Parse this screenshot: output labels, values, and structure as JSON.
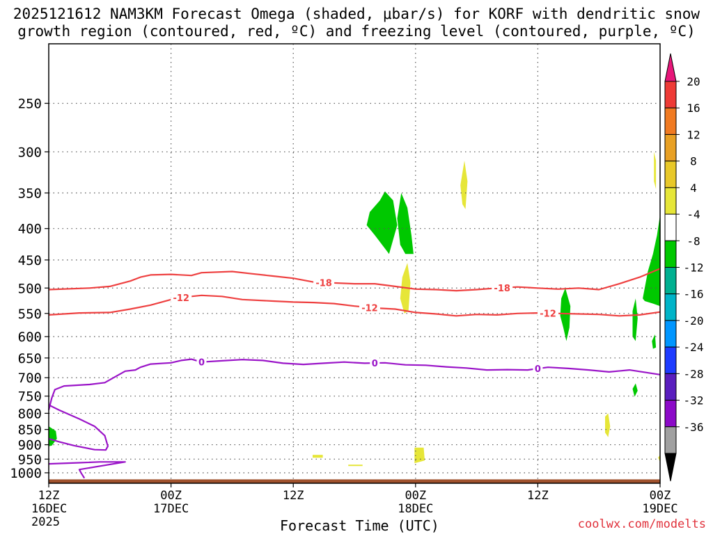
{
  "title_line1": "2025121612 NAM3KM Forecast Omega (shaded, μbar/s) for KORF with dendritic snow",
  "title_line2": "growth region (contoured, red, ºC) and freezing level (contoured, purple, ºC)",
  "credit": "coolwx.com/modelts",
  "chart_data": {
    "type": "time-height",
    "xlabel": "Forecast Time (UTC)",
    "x_range_hours": [
      0,
      60
    ],
    "x_ticks": [
      {
        "hour": 0,
        "lines": [
          "12Z",
          "16DEC",
          "2025"
        ]
      },
      {
        "hour": 12,
        "lines": [
          "00Z",
          "17DEC"
        ]
      },
      {
        "hour": 24,
        "lines": [
          "12Z"
        ]
      },
      {
        "hour": 36,
        "lines": [
          "00Z",
          "18DEC"
        ]
      },
      {
        "hour": 48,
        "lines": [
          "12Z"
        ]
      },
      {
        "hour": 60,
        "lines": [
          "00Z",
          "19DEC"
        ]
      }
    ],
    "y_axis": {
      "scale": "log-pressure",
      "range_hPa": [
        1040,
        200
      ],
      "inverted": true
    },
    "y_ticks": [
      250,
      300,
      350,
      400,
      450,
      500,
      550,
      600,
      650,
      700,
      750,
      800,
      850,
      900,
      950,
      1000
    ],
    "grid": "dotted",
    "colorbar": {
      "labels": [
        "20",
        "16",
        "12",
        "8",
        "4",
        "-4",
        "-8",
        "-12",
        "-16",
        "-20",
        "-24",
        "-28",
        "-32",
        "-36"
      ],
      "bins": [
        {
          "color": "#e8167a",
          "shape": "triangle-top"
        },
        {
          "color": "#ee3b36"
        },
        {
          "color": "#f07a22"
        },
        {
          "color": "#e8a024"
        },
        {
          "color": "#e8c829"
        },
        {
          "color": "#e6e638"
        },
        {
          "color": "#ffffff"
        },
        {
          "color": "#00c800"
        },
        {
          "color": "#00b090"
        },
        {
          "color": "#00b4c8"
        },
        {
          "color": "#0096ff"
        },
        {
          "color": "#1e3cff"
        },
        {
          "color": "#5a1ebe"
        },
        {
          "color": "#8c0ac8"
        },
        {
          "color": "#a0a0a0"
        },
        {
          "color": "#000000",
          "shape": "triangle-bottom"
        }
      ]
    },
    "contours": [
      {
        "label": "-18",
        "color": "#ee4040",
        "label_positions_hours": [
          27,
          44.5
        ],
        "points": [
          [
            0,
            503
          ],
          [
            4,
            500
          ],
          [
            6,
            497
          ],
          [
            8,
            487
          ],
          [
            9,
            480
          ],
          [
            10,
            476
          ],
          [
            12,
            475
          ],
          [
            14,
            477
          ],
          [
            15,
            472
          ],
          [
            18,
            470
          ],
          [
            20,
            474
          ],
          [
            22,
            478
          ],
          [
            24,
            482
          ],
          [
            26,
            489
          ],
          [
            30,
            492
          ],
          [
            32,
            492
          ],
          [
            34,
            497
          ],
          [
            36,
            502
          ],
          [
            38,
            503
          ],
          [
            40,
            505
          ],
          [
            42,
            503
          ],
          [
            44,
            500
          ],
          [
            46,
            498
          ],
          [
            48,
            500
          ],
          [
            50,
            502
          ],
          [
            52,
            500
          ],
          [
            54,
            503
          ],
          [
            56,
            492
          ],
          [
            58,
            480
          ],
          [
            60,
            465
          ]
        ]
      },
      {
        "label": "-12",
        "color": "#ee4040",
        "label_positions_hours": [
          13,
          31.5,
          49
        ],
        "points": [
          [
            0,
            553
          ],
          [
            3,
            549
          ],
          [
            6,
            548
          ],
          [
            8,
            541
          ],
          [
            10,
            533
          ],
          [
            12,
            522
          ],
          [
            13,
            518
          ],
          [
            15,
            514
          ],
          [
            17,
            516
          ],
          [
            19,
            522
          ],
          [
            22,
            525
          ],
          [
            24,
            527
          ],
          [
            26,
            528
          ],
          [
            28,
            530
          ],
          [
            30,
            535
          ],
          [
            32,
            539
          ],
          [
            34,
            541
          ],
          [
            36,
            548
          ],
          [
            38,
            551
          ],
          [
            40,
            555
          ],
          [
            42,
            552
          ],
          [
            44,
            553
          ],
          [
            46,
            550
          ],
          [
            48,
            549
          ],
          [
            50,
            550
          ],
          [
            52,
            551
          ],
          [
            54,
            552
          ],
          [
            56,
            555
          ],
          [
            58,
            553
          ],
          [
            60,
            547
          ]
        ]
      },
      {
        "label": "0",
        "color": "#9a14c8",
        "label_positions_hours": [
          15,
          32,
          48
        ],
        "points": [
          [
            0,
            790
          ],
          [
            0.3,
            755
          ],
          [
            0.6,
            732
          ],
          [
            1.5,
            722
          ],
          [
            4,
            718
          ],
          [
            5.5,
            713
          ],
          [
            6.5,
            698
          ],
          [
            7.5,
            683
          ],
          [
            8.5,
            680
          ],
          [
            9,
            673
          ],
          [
            10,
            665
          ],
          [
            12,
            662
          ],
          [
            13,
            656
          ],
          [
            14,
            653
          ],
          [
            15,
            660
          ],
          [
            17,
            657
          ],
          [
            19,
            654
          ],
          [
            21,
            656
          ],
          [
            23,
            663
          ],
          [
            25,
            666
          ],
          [
            27,
            663
          ],
          [
            29,
            660
          ],
          [
            31,
            663
          ],
          [
            33,
            662
          ],
          [
            35,
            667
          ],
          [
            37,
            668
          ],
          [
            39,
            672
          ],
          [
            41,
            675
          ],
          [
            43,
            680
          ],
          [
            45,
            679
          ],
          [
            47,
            680
          ],
          [
            49,
            673
          ],
          [
            51,
            676
          ],
          [
            53,
            680
          ],
          [
            55,
            685
          ],
          [
            57,
            680
          ],
          [
            59,
            688
          ],
          [
            60,
            692
          ]
        ]
      },
      {
        "label": "",
        "color": "#9a14c8",
        "points": [
          [
            0,
            775
          ],
          [
            1,
            790
          ],
          [
            3,
            817
          ],
          [
            4.5,
            840
          ],
          [
            5.5,
            870
          ],
          [
            5.8,
            905
          ],
          [
            5.6,
            918
          ],
          [
            4.5,
            917
          ],
          [
            2.5,
            903
          ],
          [
            1,
            890
          ],
          [
            0,
            880
          ]
        ]
      },
      {
        "label": "",
        "color": "#9a14c8",
        "points": [
          [
            0,
            967
          ],
          [
            3,
            963
          ],
          [
            5,
            960
          ],
          [
            7.5,
            960
          ],
          [
            3,
            988
          ],
          [
            3.2,
            1002
          ],
          [
            3.5,
            1020
          ]
        ]
      }
    ],
    "shaded_regions": [
      {
        "value": -8,
        "color": "#00c800",
        "points": [
          [
            31.5,
            376
          ],
          [
            32.5,
            360
          ],
          [
            33,
            348
          ],
          [
            33.8,
            360
          ],
          [
            34.2,
            395
          ],
          [
            33.4,
            440
          ],
          [
            32,
            410
          ],
          [
            31.2,
            395
          ]
        ]
      },
      {
        "value": -8,
        "color": "#00c800",
        "points": [
          [
            34.2,
            385
          ],
          [
            34.6,
            350
          ],
          [
            35.2,
            370
          ],
          [
            35.6,
            410
          ],
          [
            35.8,
            440
          ],
          [
            35,
            440
          ],
          [
            34.5,
            425
          ]
        ]
      },
      {
        "value": -8,
        "color": "#00c800",
        "points": [
          [
            50.3,
            520
          ],
          [
            50.7,
            500
          ],
          [
            51.2,
            535
          ],
          [
            51.1,
            580
          ],
          [
            50.8,
            610
          ],
          [
            50.5,
            580
          ],
          [
            50.2,
            555
          ]
        ]
      },
      {
        "value": -8,
        "color": "#00c800",
        "points": [
          [
            57.3,
            545
          ],
          [
            57.6,
            520
          ],
          [
            57.8,
            560
          ],
          [
            57.6,
            610
          ],
          [
            57.3,
            600
          ]
        ]
      },
      {
        "value": -8,
        "color": "#00c800",
        "points": [
          [
            59.2,
            610
          ],
          [
            59.5,
            595
          ],
          [
            59.6,
            625
          ],
          [
            59.3,
            628
          ]
        ]
      },
      {
        "value": -8,
        "color": "#00c800",
        "points": [
          [
            57.3,
            730
          ],
          [
            57.6,
            715
          ],
          [
            57.8,
            735
          ],
          [
            57.5,
            752
          ]
        ]
      },
      {
        "value": -8,
        "color": "#00c800",
        "points": [
          [
            58.3,
            520
          ],
          [
            58.8,
            470
          ],
          [
            59.3,
            440
          ],
          [
            59.7,
            410
          ],
          [
            60,
            380
          ],
          [
            60,
            535
          ],
          [
            59.3,
            530
          ],
          [
            58.5,
            525
          ]
        ]
      },
      {
        "value": -8,
        "color": "#00c800",
        "points": [
          [
            0,
            840
          ],
          [
            0.7,
            855
          ],
          [
            0.8,
            880
          ],
          [
            0.3,
            903
          ],
          [
            0,
            905
          ]
        ]
      },
      {
        "value": 4,
        "color": "#e6e638",
        "points": [
          [
            40.4,
            340
          ],
          [
            40.8,
            310
          ],
          [
            41.1,
            335
          ],
          [
            40.9,
            372
          ],
          [
            40.6,
            365
          ]
        ]
      },
      {
        "value": 4,
        "color": "#e6e638",
        "points": [
          [
            59.4,
            300
          ],
          [
            59.6,
            310
          ],
          [
            59.6,
            345
          ],
          [
            59.4,
            335
          ]
        ]
      },
      {
        "value": 4,
        "color": "#e6e638",
        "points": [
          [
            34.7,
            480
          ],
          [
            35.2,
            455
          ],
          [
            35.5,
            490
          ],
          [
            35.3,
            545
          ],
          [
            34.9,
            550
          ],
          [
            34.5,
            520
          ]
        ]
      },
      {
        "value": 4,
        "color": "#e6e638",
        "points": [
          [
            35.9,
            910
          ],
          [
            36.8,
            910
          ],
          [
            36.9,
            955
          ],
          [
            35.9,
            965
          ]
        ]
      },
      {
        "value": 4,
        "color": "#e6e638",
        "points": [
          [
            25.9,
            935
          ],
          [
            26.9,
            935
          ],
          [
            26.9,
            945
          ],
          [
            25.9,
            945
          ]
        ]
      },
      {
        "value": 4,
        "color": "#e6e638",
        "points": [
          [
            29.4,
            970
          ],
          [
            30.8,
            970
          ],
          [
            30.8,
            975
          ],
          [
            29.4,
            975
          ]
        ]
      },
      {
        "value": 4,
        "color": "#e6e638",
        "points": [
          [
            54.6,
            810
          ],
          [
            54.9,
            800
          ],
          [
            55.1,
            840
          ],
          [
            54.9,
            875
          ],
          [
            54.6,
            860
          ]
        ]
      },
      {
        "value": 4,
        "color": "#e6e638",
        "points": [
          [
            59.8,
            945
          ],
          [
            60,
            935
          ],
          [
            60,
            960
          ]
        ]
      }
    ],
    "terrain": {
      "color": "#a0522d",
      "surface_pressure_hPa": 1025
    }
  }
}
